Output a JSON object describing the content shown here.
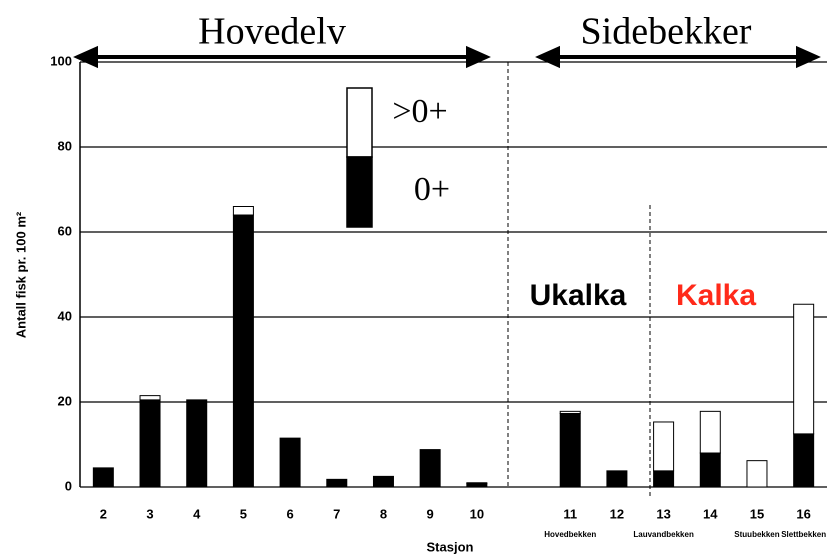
{
  "chart_data": {
    "type": "stacked_bar",
    "headers": [
      "Hovedelv",
      "Sidebekker"
    ],
    "y_label": "Antall fisk pr. 100 m²",
    "x_label": "Stasjon",
    "categories": [
      "2",
      "3",
      "4",
      "5",
      "6",
      "7",
      "8",
      "9",
      "10",
      null,
      "11",
      "12",
      "13",
      "14",
      "15",
      "16"
    ],
    "series": [
      {
        "name": "0+",
        "color": "#000000",
        "values": [
          4.5,
          20.5,
          20.5,
          64,
          11.5,
          1.8,
          2.5,
          8.8,
          0.8,
          null,
          17.3,
          3.8,
          3.8,
          8,
          0,
          12.5
        ]
      },
      {
        "name": ">0+",
        "color": "#ffffff",
        "values": [
          0,
          1,
          0,
          2,
          0,
          0,
          0,
          0,
          0.2,
          null,
          0.5,
          0,
          11.5,
          9.8,
          6.2,
          30.5
        ]
      }
    ],
    "sublabels": [
      {
        "text": "Hovedbekken",
        "category": 10
      },
      {
        "text": "Lauvandbekken",
        "category": 12
      },
      {
        "text": "Stuubekken",
        "category": 14
      },
      {
        "text": "Slettbekken",
        "category": 15
      }
    ],
    "annotations": [
      {
        "text": "Ukalka",
        "color": "#000000"
      },
      {
        "text": "Kalka",
        "color": "#ff2a1a"
      }
    ],
    "ylim": [
      0,
      100
    ],
    "yticks": [
      0,
      20,
      40,
      60,
      80,
      100
    ],
    "grid": true
  }
}
